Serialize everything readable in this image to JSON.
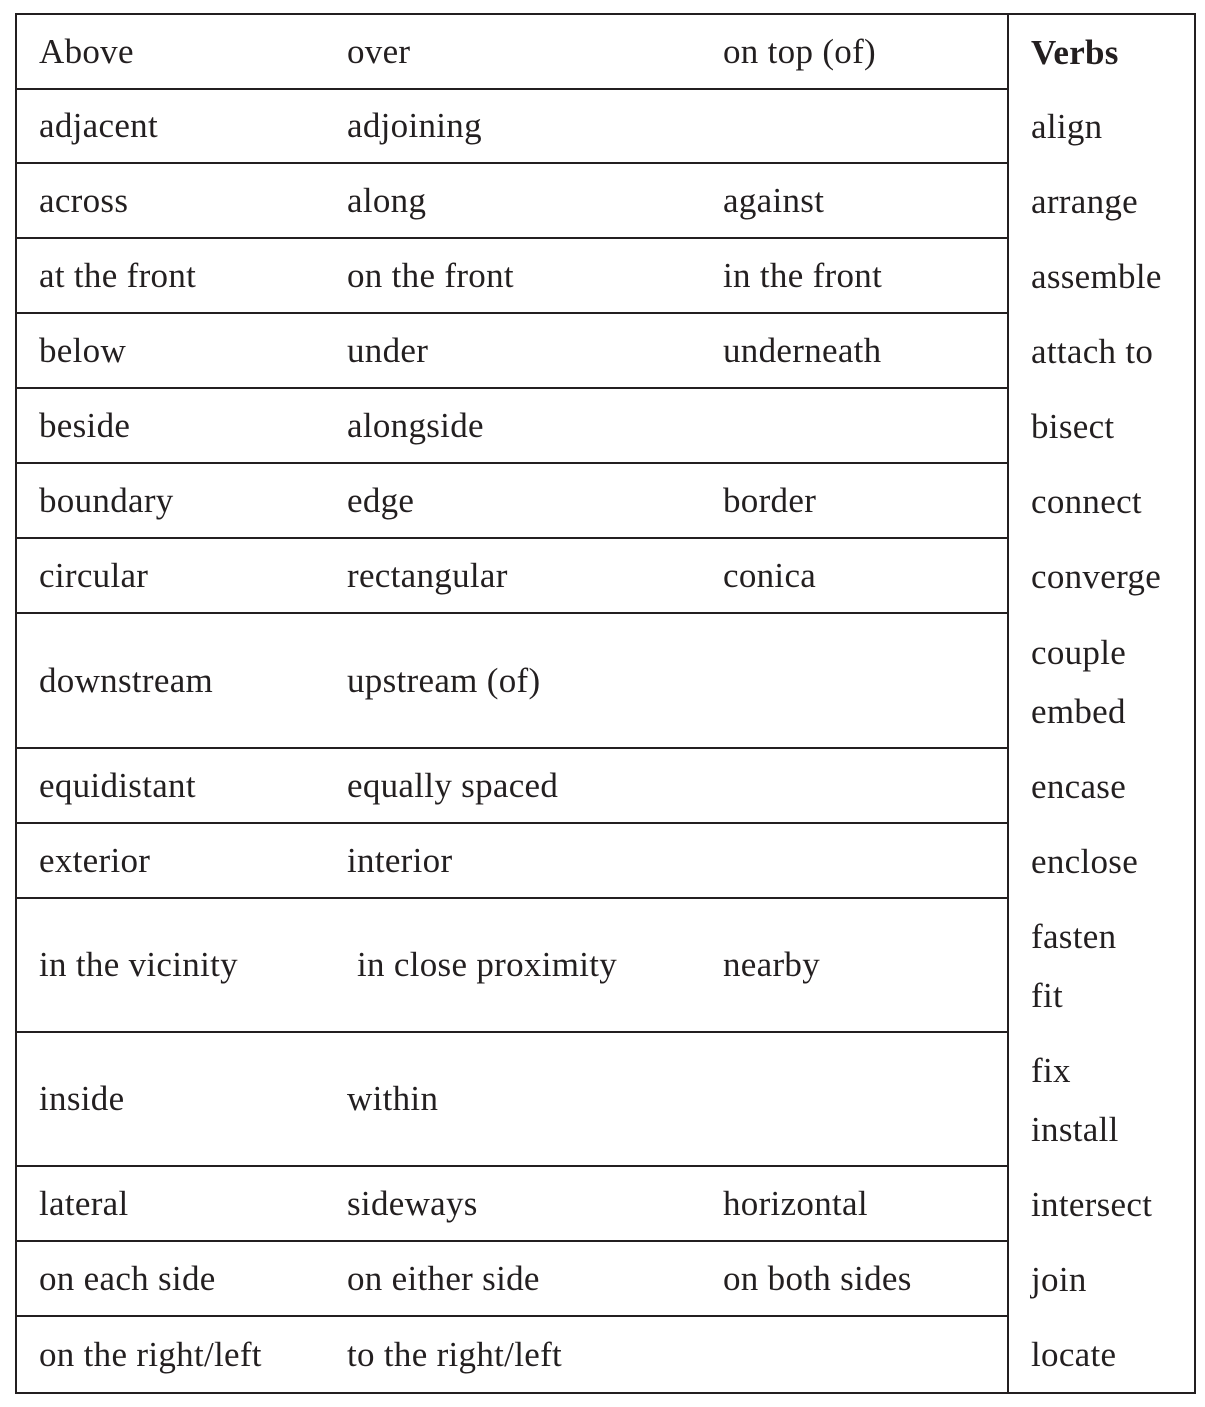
{
  "table": {
    "rows": [
      {
        "c1": "Above",
        "c2": "over",
        "c3": "on top (of)"
      },
      {
        "c1": "adjacent",
        "c2": "adjoining",
        "c3": ""
      },
      {
        "c1": "across",
        "c2": "along",
        "c3": "against"
      },
      {
        "c1": "at the front",
        "c2": "on the front",
        "c3": "in the front"
      },
      {
        "c1": "below",
        "c2": "under",
        "c3": "underneath"
      },
      {
        "c1": "beside",
        "c2": "alongside",
        "c3": ""
      },
      {
        "c1": "boundary",
        "c2": "edge",
        "c3": "border"
      },
      {
        "c1": "circular",
        "c2": "rectangular",
        "c3": "conica"
      },
      {
        "c1": "downstream",
        "c2": "upstream (of)",
        "c3": ""
      },
      {
        "c1": "equidistant",
        "c2": "equally spaced",
        "c3": ""
      },
      {
        "c1": "exterior",
        "c2": "interior",
        "c3": ""
      },
      {
        "c1": "in the vicinity",
        "c2": "in close proximity",
        "c3": "nearby"
      },
      {
        "c1": "inside",
        "c2": "within",
        "c3": ""
      },
      {
        "c1": "lateral",
        "c2": "sideways",
        "c3": "horizontal"
      },
      {
        "c1": "on each side",
        "c2": "on either side",
        "c3": "on both sides"
      },
      {
        "c1": "on the right/left",
        "c2": "to the right/left",
        "c3": ""
      }
    ],
    "verbs_heading": "Verbs",
    "verbs": [
      "align",
      "arrange",
      "assemble",
      "attach to",
      "bisect",
      "connect",
      "converge",
      "couple",
      "embed",
      "encase",
      "enclose",
      "fasten",
      "fit",
      "fix",
      "install",
      "intersect",
      "join",
      "locate"
    ]
  }
}
